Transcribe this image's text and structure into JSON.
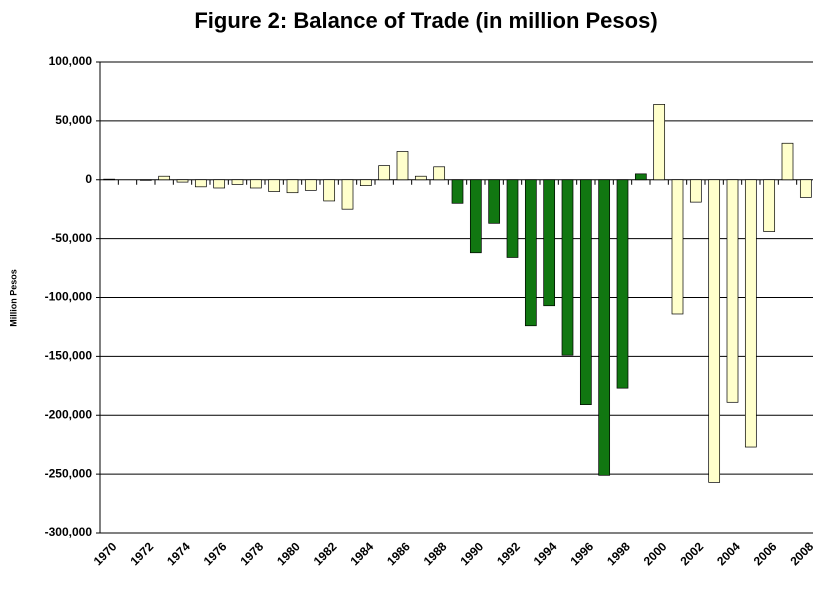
{
  "chart_data": {
    "type": "bar",
    "title": "Figure 2: Balance of Trade (in million Pesos)",
    "y_label": "Million Pesos",
    "categories": [
      "1970",
      null,
      "1972",
      null,
      "1974",
      null,
      "1976",
      null,
      "1978",
      null,
      "1980",
      null,
      "1982",
      null,
      "1984",
      null,
      "1986",
      null,
      "1988",
      null,
      "1990",
      null,
      "1992",
      null,
      "1994",
      null,
      "1996",
      null,
      "1998",
      null,
      "2000",
      null,
      "2002",
      null,
      "2004",
      null,
      "2006",
      null,
      "2008"
    ],
    "values": [
      500,
      0,
      -500,
      3000,
      -2000,
      -6000,
      -7000,
      -4000,
      -7000,
      -10000,
      -11000,
      -9000,
      -18000,
      -25000,
      -5000,
      12000,
      24000,
      3000,
      11000,
      -20000,
      -62000,
      -37000,
      -66000,
      -124000,
      -107000,
      -149000,
      -191000,
      -251000,
      -177000,
      5000,
      64000,
      -114000,
      -19000,
      -257000,
      -189000,
      -227000,
      -44000,
      31000,
      -15000
    ],
    "colors": [
      "#ffffcc",
      "#ffffcc",
      "#ffffcc",
      "#ffffcc",
      "#ffffcc",
      "#ffffcc",
      "#ffffcc",
      "#ffffcc",
      "#ffffcc",
      "#ffffcc",
      "#ffffcc",
      "#ffffcc",
      "#ffffcc",
      "#ffffcc",
      "#ffffcc",
      "#ffffcc",
      "#ffffcc",
      "#ffffcc",
      "#ffffcc",
      "#117711",
      "#117711",
      "#117711",
      "#117711",
      "#117711",
      "#117711",
      "#117711",
      "#117711",
      "#117711",
      "#117711",
      "#117711",
      "#ffffcc",
      "#ffffcc",
      "#ffffcc",
      "#ffffcc",
      "#ffffcc",
      "#ffffcc",
      "#ffffcc",
      "#ffffcc",
      "#ffffcc"
    ],
    "ylim": [
      -300000,
      100000
    ],
    "yticks": [
      {
        "value": -300000,
        "label": "-300,000"
      },
      {
        "value": -250000,
        "label": "-250,000"
      },
      {
        "value": -200000,
        "label": "-200,000"
      },
      {
        "value": -150000,
        "label": "-150,000"
      },
      {
        "value": -100000,
        "label": "-100,000"
      },
      {
        "value": -50000,
        "label": "-50,000"
      },
      0,
      {
        "value": 50000,
        "label": "50,000"
      },
      {
        "value": 100000,
        "label": "100,000"
      }
    ],
    "grid": true
  }
}
